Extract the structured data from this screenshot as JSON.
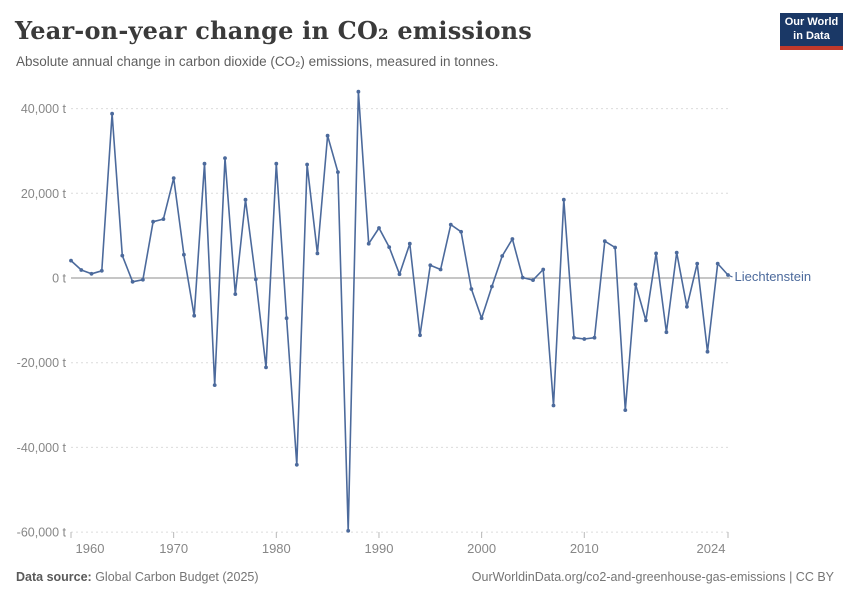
{
  "header": {
    "title": "Year-on-year change in CO₂ emissions",
    "subtitle": "Absolute annual change in carbon dioxide (CO₂) emissions, measured in tonnes."
  },
  "logo": {
    "line1": "Our World",
    "line2": "in Data"
  },
  "footer": {
    "source_label": "Data source:",
    "source_value": " Global Carbon Budget (2025)",
    "link": "OurWorldinData.org/co2-and-greenhouse-gas-emissions | CC BY"
  },
  "chart_data": {
    "type": "line",
    "entity_label": "Liechtenstein",
    "unit": "t",
    "x": [
      1960,
      1961,
      1962,
      1963,
      1964,
      1965,
      1966,
      1967,
      1968,
      1969,
      1970,
      1971,
      1972,
      1973,
      1974,
      1975,
      1976,
      1977,
      1978,
      1979,
      1980,
      1981,
      1982,
      1983,
      1984,
      1985,
      1986,
      1987,
      1988,
      1989,
      1990,
      1991,
      1992,
      1993,
      1994,
      1995,
      1996,
      1997,
      1998,
      1999,
      2000,
      2001,
      2002,
      2003,
      2004,
      2005,
      2006,
      2007,
      2008,
      2009,
      2010,
      2011,
      2012,
      2013,
      2014,
      2015,
      2016,
      2017,
      2018,
      2019,
      2020,
      2021,
      2022,
      2023,
      2024
    ],
    "values": [
      4100,
      1900,
      1000,
      1700,
      38800,
      5300,
      -900,
      -400,
      13300,
      13900,
      23600,
      5500,
      -8900,
      27000,
      -25300,
      28300,
      -3800,
      18500,
      -300,
      -21100,
      27000,
      -9500,
      -44100,
      26800,
      5800,
      33600,
      25000,
      -59700,
      44000,
      8100,
      11800,
      7300,
      900,
      8100,
      -13500,
      3000,
      2000,
      12600,
      10900,
      -2600,
      -9500,
      -2000,
      5200,
      9200,
      100,
      -500,
      2000,
      -30100,
      18500,
      -14100,
      -14400,
      -14100,
      8700,
      7200,
      -31200,
      -1500,
      -10000,
      5800,
      -12800,
      6000,
      -6800,
      3400,
      -17400,
      3400,
      700
    ],
    "yticks": [
      40000,
      20000,
      0,
      -20000,
      -40000,
      -60000
    ],
    "ytick_labels": [
      "40,000 t",
      "20,000 t",
      "0 t",
      "-20,000 t",
      "-40,000 t",
      "-60,000 t"
    ],
    "xticks": [
      1960,
      1970,
      1980,
      1990,
      2000,
      2010,
      2024
    ],
    "xtick_labels": [
      "1960",
      "1970",
      "1980",
      "1990",
      "2000",
      "2010",
      "2024"
    ],
    "ylim": [
      -60000,
      44000
    ],
    "xlim": [
      1960,
      2024
    ],
    "grid": true,
    "legend_position": "end-of-line-label",
    "colors": {
      "line": "#4C6A9C",
      "grid": "#dcdcdc",
      "zero_line": "#a5a5a5",
      "axis_text": "#878787",
      "logo_bg": "#1a3866",
      "logo_bar": "#c0392b"
    }
  }
}
